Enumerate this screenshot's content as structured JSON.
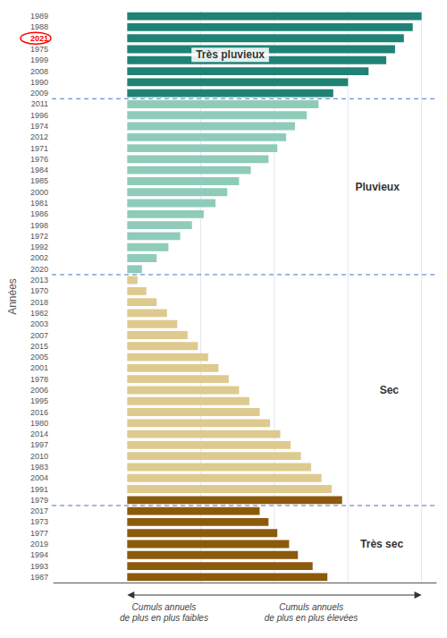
{
  "chart_data": {
    "type": "bar",
    "orientation": "horizontal",
    "ylabel": "Années",
    "categories": [
      "1989",
      "1988",
      "2021",
      "1975",
      "1999",
      "2008",
      "1990",
      "2009",
      "2011",
      "1996",
      "1974",
      "2012",
      "1971",
      "1976",
      "1984",
      "1985",
      "2000",
      "1981",
      "1986",
      "1998",
      "1972",
      "1992",
      "2002",
      "2020",
      "2013",
      "1970",
      "2018",
      "1982",
      "2003",
      "2007",
      "2015",
      "2005",
      "2001",
      "1978",
      "2006",
      "1995",
      "2016",
      "1980",
      "2014",
      "1997",
      "2010",
      "1983",
      "2004",
      "1991",
      "1979",
      "2017",
      "1973",
      "1977",
      "2019",
      "1994",
      "1993",
      "1987"
    ],
    "values": [
      10.0,
      9.7,
      9.4,
      9.1,
      8.8,
      8.2,
      7.5,
      7.0,
      6.5,
      6.1,
      5.7,
      5.4,
      5.1,
      4.8,
      4.2,
      3.8,
      3.4,
      3.0,
      2.6,
      2.2,
      1.8,
      1.4,
      1.0,
      0.5,
      0.35,
      0.65,
      1.0,
      1.35,
      1.7,
      2.05,
      2.4,
      2.75,
      3.1,
      3.45,
      3.8,
      4.15,
      4.5,
      4.85,
      5.2,
      5.55,
      5.9,
      6.25,
      6.6,
      6.95,
      7.3,
      4.5,
      4.8,
      5.1,
      5.5,
      5.8,
      6.3,
      6.8
    ],
    "colors": [
      "#1f8275",
      "#1f8275",
      "#1f8275",
      "#1f8275",
      "#1f8275",
      "#1f8275",
      "#1f8275",
      "#1f8275",
      "#8eccb9",
      "#8eccb9",
      "#8eccb9",
      "#8eccb9",
      "#8eccb9",
      "#8eccb9",
      "#8eccb9",
      "#8eccb9",
      "#8eccb9",
      "#8eccb9",
      "#8eccb9",
      "#8eccb9",
      "#8eccb9",
      "#8eccb9",
      "#8eccb9",
      "#8eccb9",
      "#deca8e",
      "#deca8e",
      "#deca8e",
      "#deca8e",
      "#deca8e",
      "#deca8e",
      "#deca8e",
      "#deca8e",
      "#deca8e",
      "#deca8e",
      "#deca8e",
      "#deca8e",
      "#deca8e",
      "#deca8e",
      "#deca8e",
      "#deca8e",
      "#deca8e",
      "#deca8e",
      "#deca8e",
      "#deca8e",
      "#8c5a0c",
      "#8c5a0c",
      "#8c5a0c",
      "#8c5a0c",
      "#8c5a0c",
      "#8c5a0c",
      "#8c5a0c",
      "#8c5a0c"
    ],
    "xlim": [
      -2.5,
      10.5
    ],
    "xticks": [
      2.5,
      5,
      7.5,
      10
    ],
    "grid": true,
    "tick_labels": "y",
    "annotations": [
      {
        "text": "Très pluvieux",
        "from": "1989",
        "to": "2009"
      },
      {
        "text": "Pluvieux",
        "from": "2011",
        "to": "2020"
      },
      {
        "text": "Sec",
        "from": "2013",
        "to": "1979"
      },
      {
        "text": "Très sec",
        "from": "2017",
        "to": "1987"
      },
      {
        "text": "Cumuls annuels\nde plus en plus faibles",
        "arrow": "left"
      },
      {
        "text": "Cumuls annuels\nde plus en plus élevées",
        "arrow": "right"
      },
      {
        "category": "2021",
        "color": "#ff0000"
      }
    ]
  }
}
